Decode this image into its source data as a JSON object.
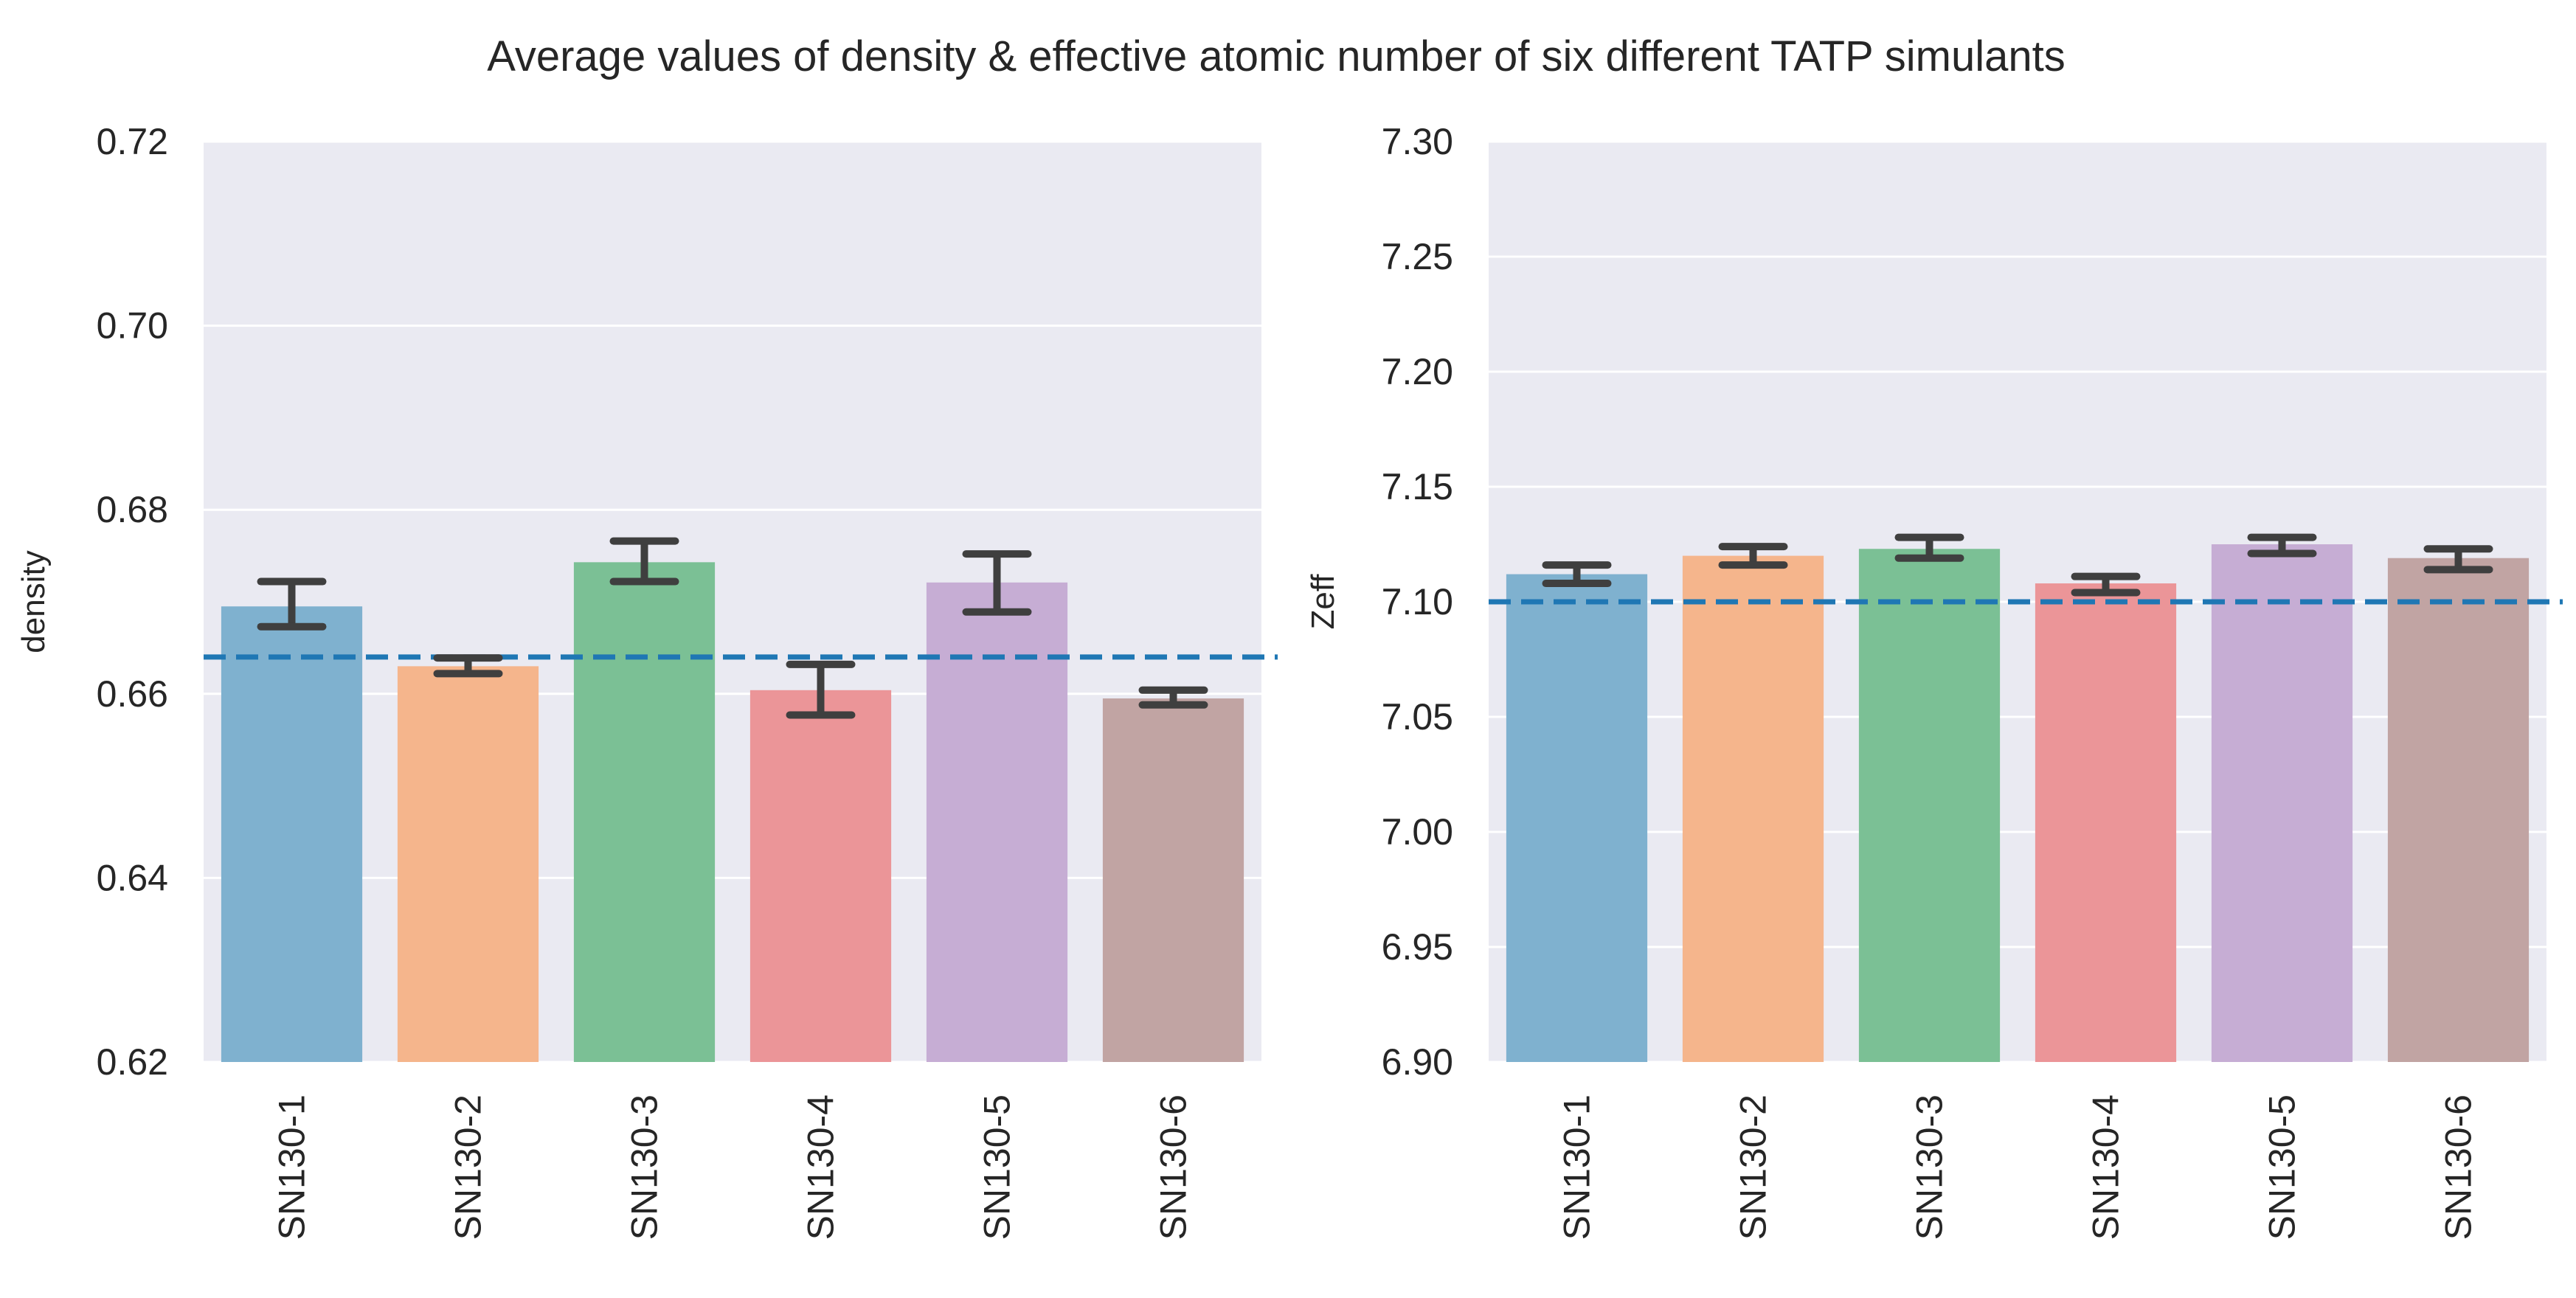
{
  "title": "Average values of density & effective atomic number of six different TATP simulants",
  "colors": {
    "plot_bg": "#eaeaf2",
    "grid": "#ffffff",
    "errorbar": "#3f3f3f",
    "refline": "#1f77b4",
    "bars": [
      "#7fb1cf",
      "#f5b58c",
      "#7bc095",
      "#eb9598",
      "#c6add4",
      "#c1a4a3"
    ]
  },
  "chart_data": [
    {
      "type": "bar",
      "name": "density-chart",
      "xlabel": "",
      "ylabel": "density",
      "ylim": [
        0.62,
        0.72
      ],
      "yticks": [
        "0.62",
        "0.64",
        "0.66",
        "0.68",
        "0.70",
        "0.72"
      ],
      "ytick_values": [
        0.62,
        0.64,
        0.66,
        0.68,
        0.7,
        0.72
      ],
      "categories": [
        "SN130-1",
        "SN130-2",
        "SN130-3",
        "SN130-4",
        "SN130-5",
        "SN130-6"
      ],
      "values": [
        0.6695,
        0.663,
        0.6743,
        0.6604,
        0.6721,
        0.6595
      ],
      "error_low": [
        0.6673,
        0.6622,
        0.6722,
        0.6577,
        0.6689,
        0.6588
      ],
      "error_high": [
        0.6722,
        0.6639,
        0.6766,
        0.6632,
        0.6752,
        0.6604
      ],
      "reference_line": 0.664,
      "grid": true
    },
    {
      "type": "bar",
      "name": "zeff-chart",
      "xlabel": "",
      "ylabel": "Zeff",
      "ylim": [
        6.9,
        7.3
      ],
      "yticks": [
        "6.90",
        "6.95",
        "7.00",
        "7.05",
        "7.10",
        "7.15",
        "7.20",
        "7.25",
        "7.30"
      ],
      "ytick_values": [
        6.9,
        6.95,
        7.0,
        7.05,
        7.1,
        7.15,
        7.2,
        7.25,
        7.3
      ],
      "categories": [
        "SN130-1",
        "SN130-2",
        "SN130-3",
        "SN130-4",
        "SN130-5",
        "SN130-6"
      ],
      "values": [
        7.112,
        7.12,
        7.123,
        7.108,
        7.125,
        7.119
      ],
      "error_low": [
        7.108,
        7.116,
        7.119,
        7.104,
        7.121,
        7.114
      ],
      "error_high": [
        7.116,
        7.124,
        7.128,
        7.111,
        7.128,
        7.123
      ],
      "reference_line": 7.1,
      "grid": true
    }
  ]
}
